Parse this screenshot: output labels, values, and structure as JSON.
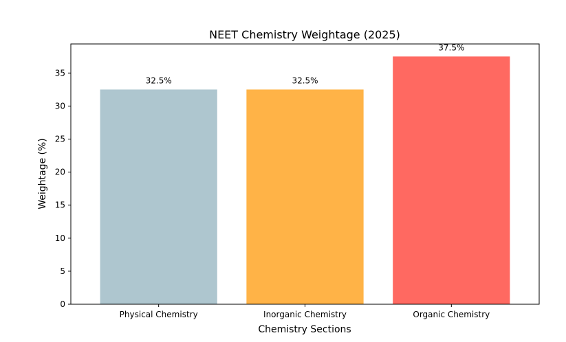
{
  "chart_data": {
    "type": "bar",
    "title": "NEET Chemistry Weightage (2025)",
    "xlabel": "Chemistry Sections",
    "ylabel": "Weightage (%)",
    "categories": [
      "Physical Chemistry",
      "Inorganic Chemistry",
      "Organic Chemistry"
    ],
    "values": [
      32.5,
      32.5,
      37.5
    ],
    "data_labels": [
      "32.5%",
      "32.5%",
      "37.5%"
    ],
    "colors": [
      "#aec6cf",
      "#ffb347",
      "#ff6961"
    ],
    "ylim": [
      0,
      39.4
    ],
    "yticks": [
      0,
      5,
      10,
      15,
      20,
      25,
      30,
      35
    ],
    "grid": false,
    "legend": "none"
  }
}
